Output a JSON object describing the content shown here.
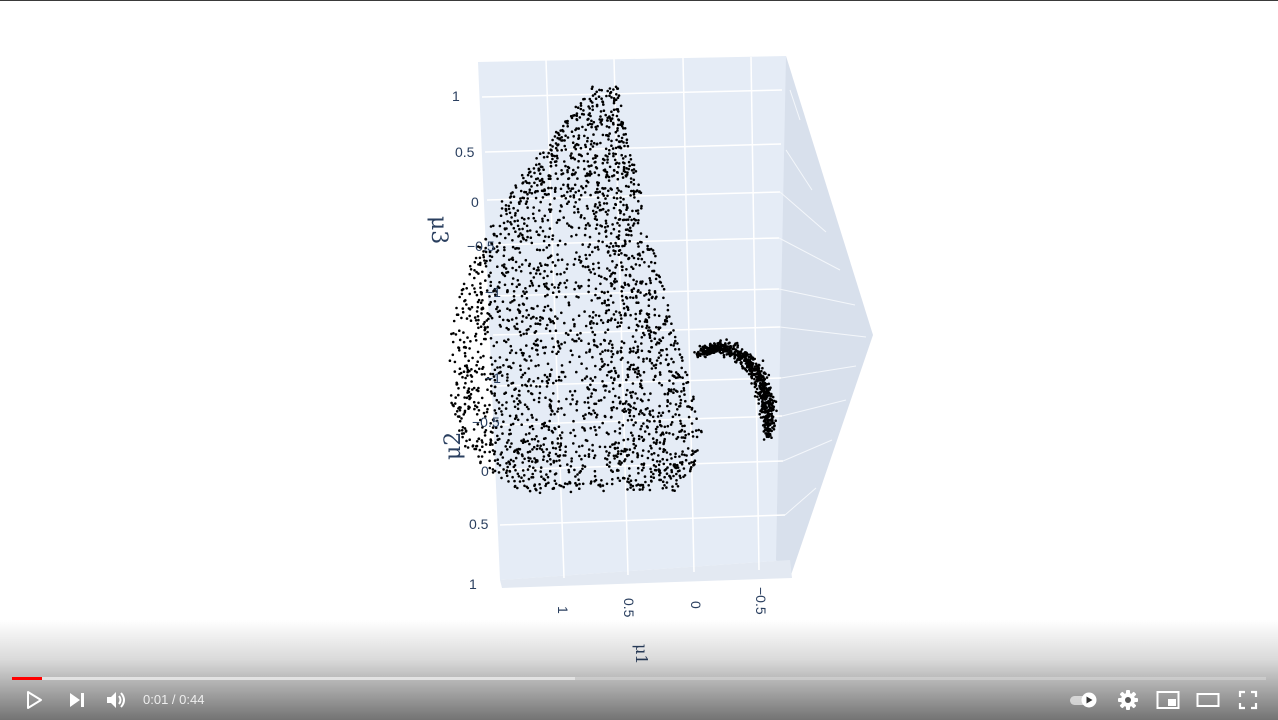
{
  "player": {
    "current_time": "0:01",
    "separator": " / ",
    "duration": "0:44",
    "played_fraction": 0.024,
    "buffered_fraction": 0.449,
    "autoplay_enabled": true
  },
  "icons": {
    "play": "play-icon",
    "next": "next-icon",
    "volume": "volume-icon",
    "autoplay": "autoplay-toggle-icon",
    "settings": "gear-icon",
    "miniplayer": "miniplayer-icon",
    "theater": "theater-mode-icon",
    "fullscreen": "fullscreen-icon"
  },
  "colors": {
    "progress_played": "#ff0000",
    "plot_pane": "#e5ecf6",
    "points": "#000000",
    "tick_text": "#2a3f5f"
  },
  "plot": {
    "type": "scatter3d",
    "z_axis_title": "μ3",
    "y_axis_title": "μ2",
    "x_axis_title": "μ1",
    "z_ticks": [
      "1",
      "0.5",
      "0",
      "−0.5",
      "−1"
    ],
    "y_ticks": [
      "−1",
      "−0.5",
      "0",
      "0.5",
      "1"
    ],
    "x_ticks": [
      "1",
      "0.5",
      "0",
      "−0.5"
    ],
    "marker_color": "#000000"
  }
}
